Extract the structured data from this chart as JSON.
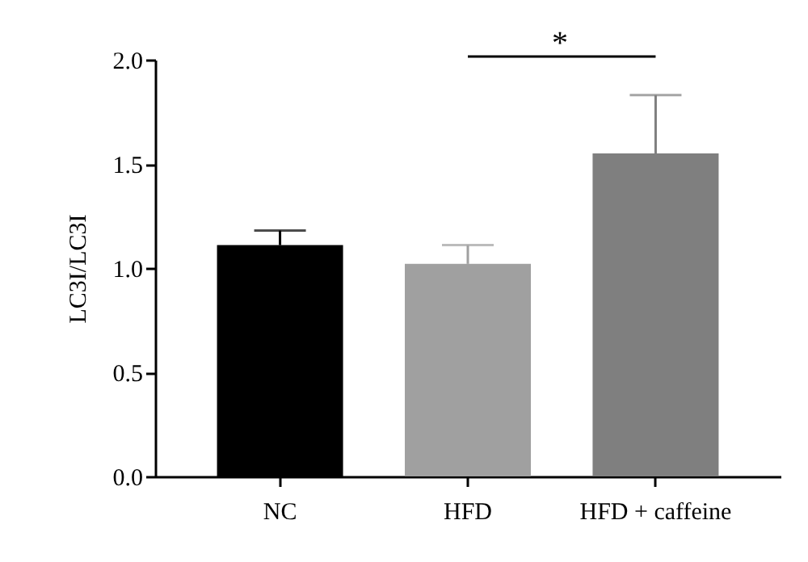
{
  "chart_data": {
    "type": "bar",
    "ylabel": "LC3I/LC3I",
    "categories": [
      "NC",
      "HFD",
      "HFD + caffeine"
    ],
    "values": [
      1.11,
      1.02,
      1.55
    ],
    "errors": [
      [
        1.11,
        1.18
      ],
      [
        1.02,
        1.11
      ],
      [
        1.55,
        1.83
      ]
    ],
    "colors": [
      "#000000",
      "#a0a0a0",
      "#7f7f7f"
    ],
    "ylim": [
      0,
      2.0
    ],
    "yticks": [
      {
        "value": 0,
        "label": "0.0"
      },
      {
        "value": 0.5,
        "label": "0.5"
      },
      {
        "value": 1.0,
        "label": "1.0"
      },
      {
        "value": 1.5,
        "label": "1.5"
      },
      {
        "value": 2.0,
        "label": "2.0"
      }
    ],
    "grid": false,
    "annotations": [
      "*"
    ]
  }
}
